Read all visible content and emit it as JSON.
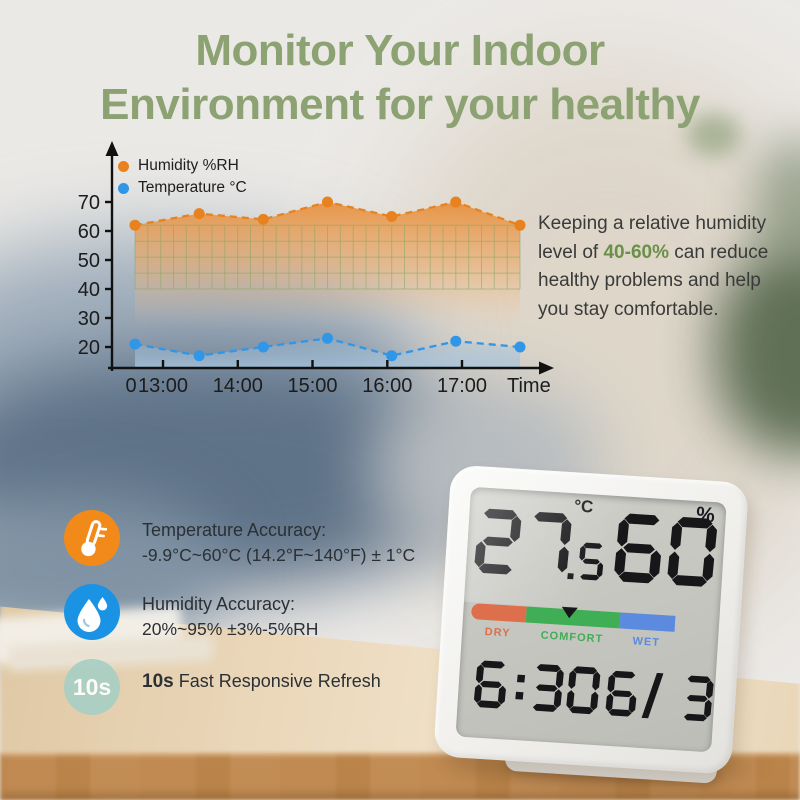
{
  "title": {
    "line1": "Monitor Your Indoor",
    "line2": "Environment for your healthy",
    "color": "#8ca272"
  },
  "chart_data": {
    "type": "line",
    "x_label": "Time",
    "origin_label": "0",
    "x_ticks": [
      "13:00",
      "14:00",
      "15:00",
      "16:00",
      "17:00"
    ],
    "y_ticks": [
      70,
      60,
      50,
      40,
      30,
      20
    ],
    "x_hours": [
      12.6,
      13.5,
      14.3,
      15.2,
      16.0,
      16.9,
      17.8
    ],
    "y_range": [
      20,
      70
    ],
    "grid": true,
    "grid_band": [
      40,
      62
    ],
    "legend_position": "top-left",
    "series": [
      {
        "name": "Humidity %RH",
        "color": "#e8821e",
        "line_style": "dashed",
        "values": [
          62,
          66,
          64,
          70,
          65,
          70,
          62
        ]
      },
      {
        "name": "Temperature °C",
        "color": "#2f96e8",
        "line_style": "dashed",
        "values": [
          21,
          17,
          20,
          23,
          17,
          22,
          20
        ]
      }
    ]
  },
  "tip": {
    "prefix": "Keeping a relative humidity level of ",
    "highlight": "40-60%",
    "suffix": " can reduce healthy problems and help you stay comfortable.",
    "highlight_color": "#6a9049"
  },
  "features": [
    {
      "icon": "thermometer-icon",
      "icon_color": "#f28a1a",
      "title": "Temperature Accuracy:",
      "value": "-9.9°C~60°C (14.2°F~140°F) ± 1°C"
    },
    {
      "icon": "water-drop-icon",
      "icon_color": "#1b93e4",
      "title": "Humidity Accuracy:",
      "value": "20%~95% ±3%-5%RH"
    },
    {
      "icon": "10s-badge",
      "icon_color": "#a9cfc4",
      "badge": "10s",
      "prefix": "10s",
      "rest": " Fast Responsive Refresh"
    }
  ],
  "device": {
    "temperature": "27.5",
    "temp_unit": "°C",
    "humidity": "60",
    "humidity_unit": "%",
    "segment_color": "#17171a",
    "comfort_scale": [
      {
        "label": "DRY",
        "color": "#dd6f4c",
        "width_pct": 27
      },
      {
        "label": "COMFORT",
        "color": "#3fae54",
        "width_pct": 46
      },
      {
        "label": "WET",
        "color": "#5b8ade",
        "width_pct": 27
      }
    ],
    "pointer_pct": 48,
    "time": "6:30",
    "date": "6/ 3"
  }
}
